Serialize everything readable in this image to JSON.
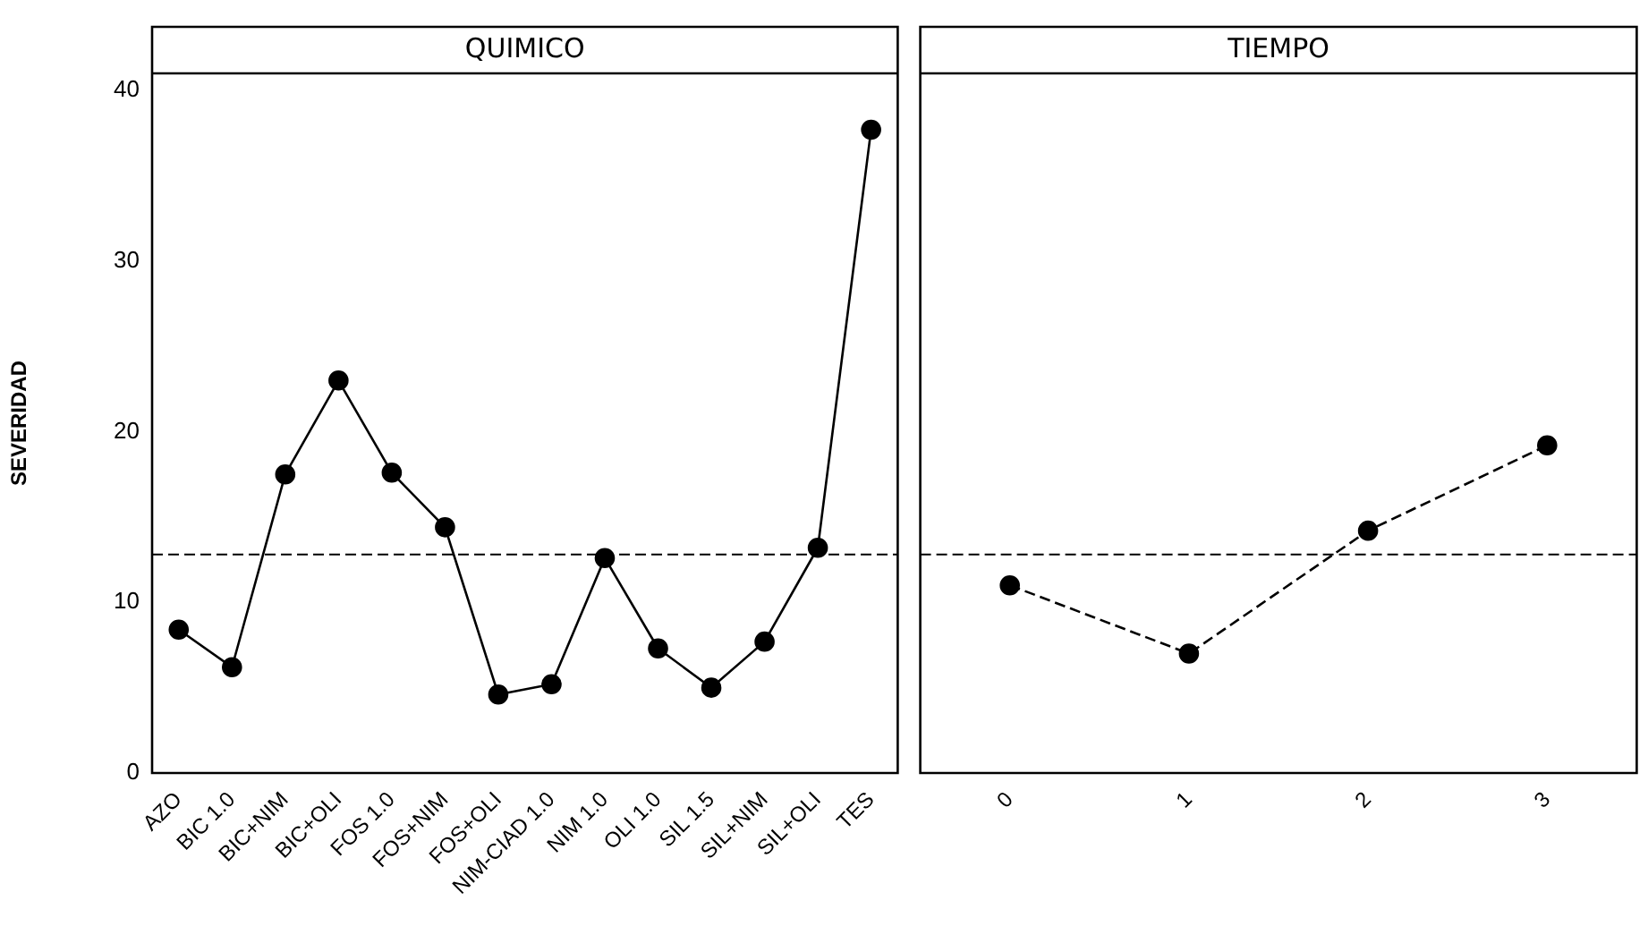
{
  "chart_data": [
    {
      "type": "line",
      "title": "QUIMICO",
      "ylabel": "SEVERIDAD",
      "categories": [
        "AZO",
        "BIC 1.0",
        "BIC+NIM",
        "BIC+OLI",
        "FOS 1.0",
        "FOS+NIM",
        "FOS+OLI",
        "NIM-CIAD 1.0",
        "NIM 1.0",
        "OLI 1.0",
        "SIL 1.5",
        "SIL+NIM",
        "SIL+OLI",
        "TES"
      ],
      "series": [
        {
          "color": "#000000",
          "values": [
            8.4,
            6.2,
            17.5,
            23.0,
            17.6,
            14.4,
            4.6,
            5.2,
            12.6,
            7.3,
            5.0,
            7.7,
            13.2,
            37.7
          ]
        }
      ],
      "ylim": [
        0,
        41
      ],
      "yticks": [
        0,
        10,
        20,
        30,
        40
      ],
      "marker": "circle",
      "line_style": "solid",
      "ref_lines": [
        {
          "axis": "y",
          "value": 12.8,
          "color": "#000000",
          "line_style": "dashed"
        }
      ]
    },
    {
      "type": "line",
      "title": "TIEMPO",
      "categories": [
        "0",
        "1",
        "2",
        "3"
      ],
      "series": [
        {
          "color": "#000000",
          "values": [
            11.0,
            7.0,
            14.2,
            19.2
          ]
        }
      ],
      "ylim": [
        0,
        41
      ],
      "yticks": [
        0,
        10,
        20,
        30,
        40
      ],
      "tick_labels": "x",
      "marker": "circle",
      "line_style": "dashed",
      "ref_lines": [
        {
          "axis": "y",
          "value": 12.8,
          "color": "#000000",
          "line_style": "dashed"
        }
      ]
    }
  ]
}
